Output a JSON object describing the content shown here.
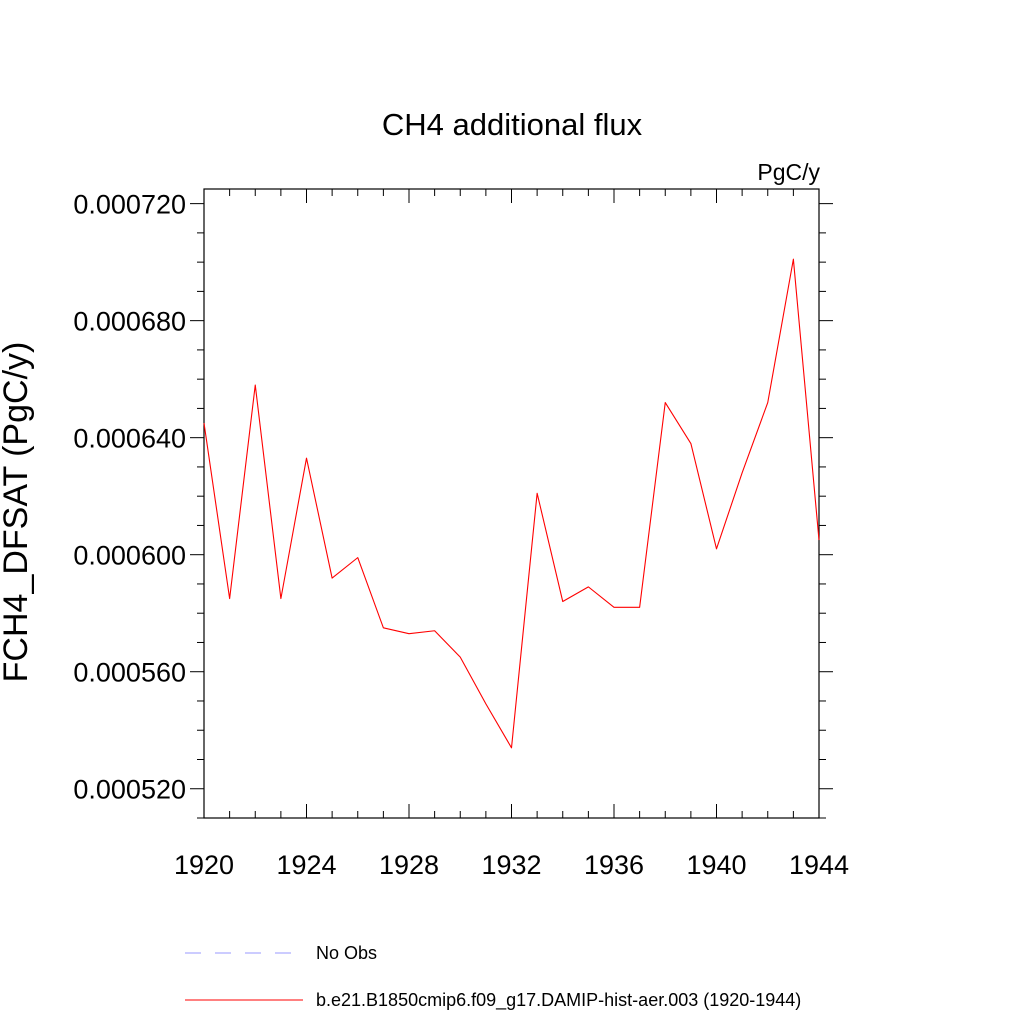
{
  "chart_data": {
    "type": "line",
    "title": "CH4 additional flux",
    "units": "PgC/y",
    "ylabel": "FCH4_DFSAT  (PgC/y)",
    "xlabel": "",
    "xlim": [
      1920,
      1944
    ],
    "ylim": [
      0.00051,
      0.000725
    ],
    "x_ticks": [
      1920,
      1924,
      1928,
      1932,
      1936,
      1940,
      1944
    ],
    "x_tick_labels": [
      "1920",
      "1924",
      "1928",
      "1932",
      "1936",
      "1940",
      "1944"
    ],
    "y_ticks": [
      0.00052,
      0.00056,
      0.0006,
      0.00064,
      0.00068,
      0.00072
    ],
    "y_tick_labels": [
      "0.000520",
      "0.000560",
      "0.000600",
      "0.000640",
      "0.000680",
      "0.000720"
    ],
    "grid": false,
    "legend_position": "bottom",
    "series": [
      {
        "name": "b.e21.B1850cmip6.f09_g17.DAMIP-hist-aer.003 (1920-1944)",
        "color": "#ff0000",
        "style": "solid",
        "x": [
          1920,
          1921,
          1922,
          1923,
          1924,
          1925,
          1926,
          1927,
          1928,
          1929,
          1930,
          1931,
          1932,
          1933,
          1934,
          1935,
          1936,
          1937,
          1938,
          1939,
          1940,
          1941,
          1942,
          1943,
          1944
        ],
        "y": [
          0.000645,
          0.000585,
          0.000658,
          0.000585,
          0.000633,
          0.000592,
          0.000599,
          0.000575,
          0.000573,
          0.000574,
          0.000565,
          0.000549,
          0.000534,
          0.000621,
          0.000584,
          0.000589,
          0.000582,
          0.000582,
          0.000652,
          0.000638,
          0.000602,
          0.000628,
          0.000652,
          0.000701,
          0.000605
        ]
      }
    ],
    "legend": [
      {
        "label": "No Obs",
        "color": "#9999ff",
        "style": "dashed"
      },
      {
        "label": "b.e21.B1850cmip6.f09_g17.DAMIP-hist-aer.003 (1920-1944)",
        "color": "#ff0000",
        "style": "solid"
      }
    ]
  }
}
